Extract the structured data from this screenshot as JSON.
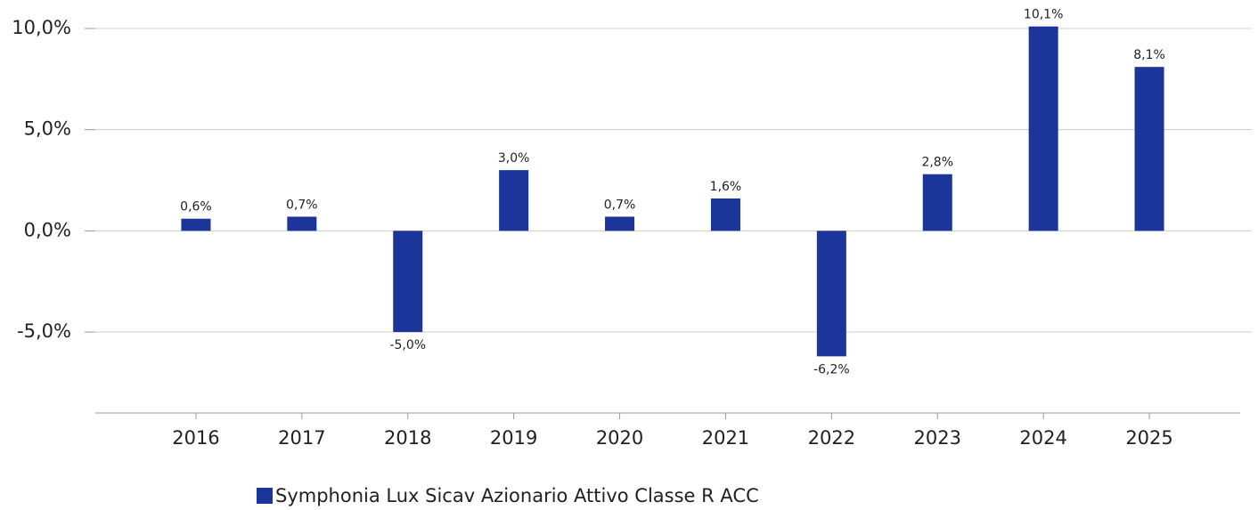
{
  "chart_data": {
    "type": "bar",
    "categories": [
      "2016",
      "2017",
      "2018",
      "2019",
      "2020",
      "2021",
      "2022",
      "2023",
      "2024",
      "2025"
    ],
    "series": [
      {
        "name": "Symphonia Lux Sicav Azionario Attivo Classe R ACC",
        "color": "#1b359b",
        "values": [
          0.6,
          0.7,
          -5.0,
          3.0,
          0.7,
          1.6,
          -6.2,
          2.8,
          10.1,
          8.1
        ],
        "value_labels": [
          "0,6%",
          "0,7%",
          "-5,0%",
          "3,0%",
          "0,7%",
          "1,6%",
          "-6,2%",
          "2,8%",
          "10,1%",
          "8,1%"
        ]
      }
    ],
    "ylim": [
      -9,
      10
    ],
    "yticks": [
      {
        "value": -5,
        "label": "-5,0%"
      },
      {
        "value": 0,
        "label": "0,0%"
      },
      {
        "value": 5,
        "label": "5,0%"
      },
      {
        "value": 10,
        "label": "10,0%"
      }
    ],
    "grid": true
  }
}
